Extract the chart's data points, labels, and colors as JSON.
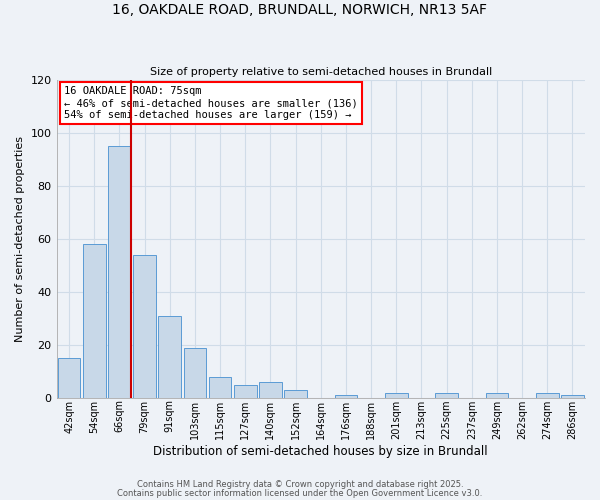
{
  "title1": "16, OAKDALE ROAD, BRUNDALL, NORWICH, NR13 5AF",
  "title2": "Size of property relative to semi-detached houses in Brundall",
  "xlabel": "Distribution of semi-detached houses by size in Brundall",
  "ylabel": "Number of semi-detached properties",
  "bin_labels": [
    "42sqm",
    "54sqm",
    "66sqm",
    "79sqm",
    "91sqm",
    "103sqm",
    "115sqm",
    "127sqm",
    "140sqm",
    "152sqm",
    "164sqm",
    "176sqm",
    "188sqm",
    "201sqm",
    "213sqm",
    "225sqm",
    "237sqm",
    "249sqm",
    "262sqm",
    "274sqm",
    "286sqm"
  ],
  "bar_heights": [
    15,
    58,
    95,
    54,
    31,
    19,
    8,
    5,
    6,
    3,
    0,
    1,
    0,
    2,
    0,
    2,
    0,
    2,
    0,
    2,
    1
  ],
  "bar_color": "#c8d8e8",
  "bar_edge_color": "#5b9bd5",
  "grid_color": "#c8d8e8",
  "vline_color": "#cc0000",
  "annotation_text": "16 OAKDALE ROAD: 75sqm\n← 46% of semi-detached houses are smaller (136)\n54% of semi-detached houses are larger (159) →",
  "footer1": "Contains HM Land Registry data © Crown copyright and database right 2025.",
  "footer2": "Contains public sector information licensed under the Open Government Licence v3.0.",
  "ylim": [
    0,
    120
  ],
  "yticks": [
    0,
    20,
    40,
    60,
    80,
    100,
    120
  ],
  "background_color": "#eef2f7",
  "plot_bg_color": "#eef2f7"
}
